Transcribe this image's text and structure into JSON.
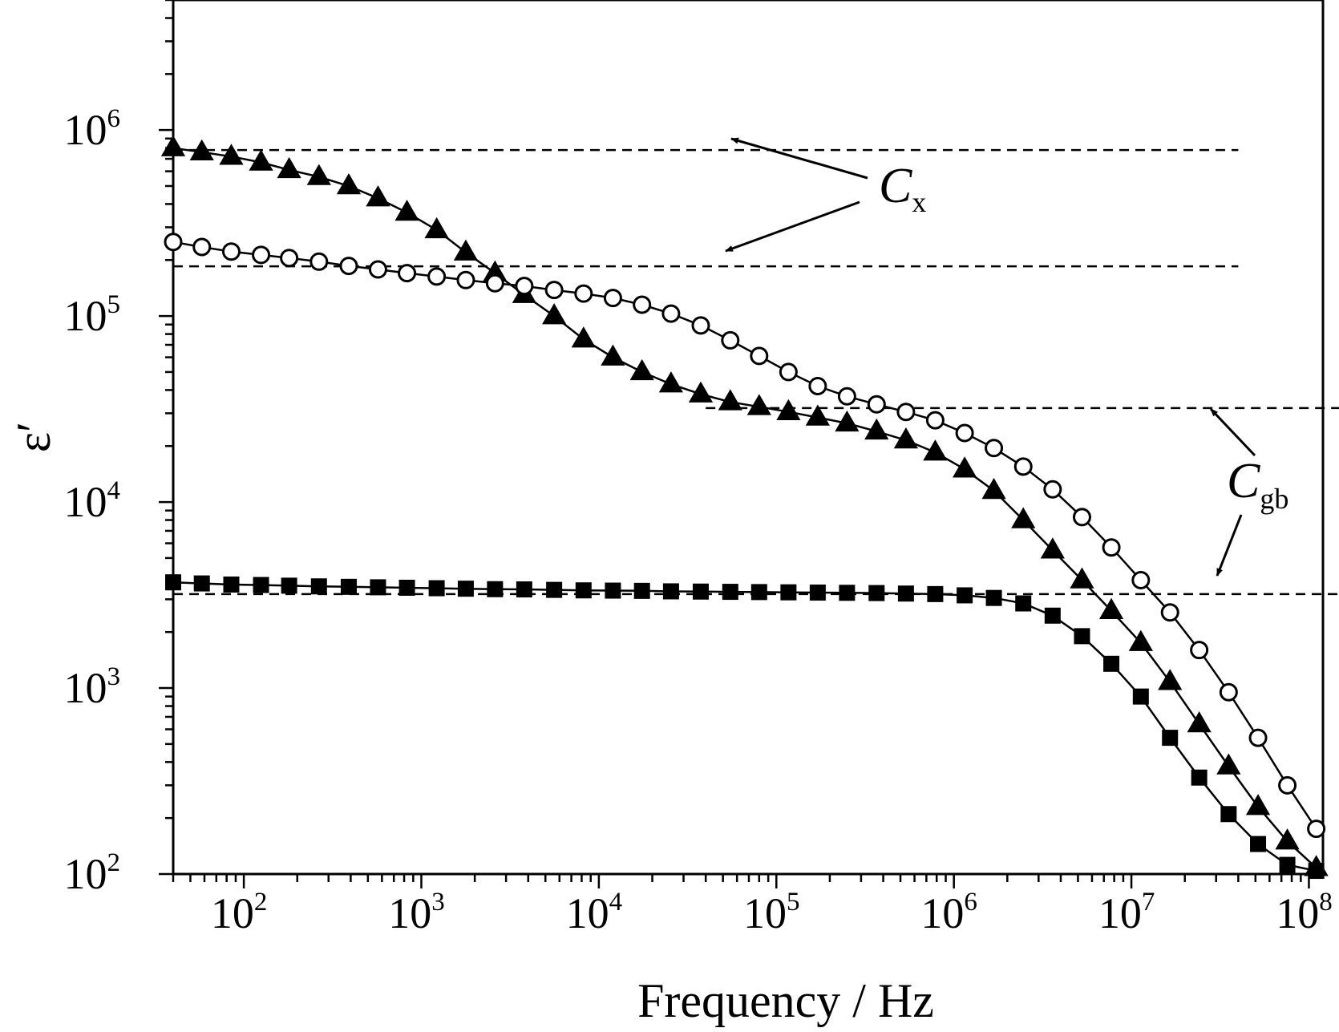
{
  "chart_data": {
    "type": "scatter",
    "title": "",
    "xlabel": "Frequency / Hz",
    "ylabel": "ε′",
    "x_scale": "log",
    "y_scale": "log",
    "xlim": [
      40,
      120000000
    ],
    "ylim": [
      100,
      5000000
    ],
    "grid": false,
    "x_ticks": [
      {
        "base": "10",
        "exp": "2",
        "value": 100
      },
      {
        "base": "10",
        "exp": "3",
        "value": 1000
      },
      {
        "base": "10",
        "exp": "4",
        "value": 10000
      },
      {
        "base": "10",
        "exp": "5",
        "value": 100000
      },
      {
        "base": "10",
        "exp": "6",
        "value": 1000000
      },
      {
        "base": "10",
        "exp": "7",
        "value": 10000000
      },
      {
        "base": "10",
        "exp": "8",
        "value": 100000000
      }
    ],
    "y_ticks": [
      {
        "base": "10",
        "exp": "2",
        "value": 100
      },
      {
        "base": "10",
        "exp": "3",
        "value": 1000
      },
      {
        "base": "10",
        "exp": "4",
        "value": 10000
      },
      {
        "base": "10",
        "exp": "5",
        "value": 100000
      },
      {
        "base": "10",
        "exp": "6",
        "value": 1000000
      }
    ],
    "series": [
      {
        "marker": "triangle-filled",
        "line": "solid",
        "points": [
          [
            40,
            800000
          ],
          [
            58,
            760000
          ],
          [
            85,
            720000
          ],
          [
            125,
            670000
          ],
          [
            180,
            610000
          ],
          [
            265,
            560000
          ],
          [
            390,
            500000
          ],
          [
            570,
            430000
          ],
          [
            830,
            360000
          ],
          [
            1220,
            290000
          ],
          [
            1780,
            220000
          ],
          [
            2600,
            170000
          ],
          [
            3800,
            130000
          ],
          [
            5600,
            100000
          ],
          [
            8200,
            75000
          ],
          [
            12000,
            60000
          ],
          [
            17500,
            50000
          ],
          [
            25500,
            43000
          ],
          [
            37500,
            38000
          ],
          [
            55000,
            34500
          ],
          [
            80000,
            32500
          ],
          [
            117000,
            30500
          ],
          [
            171000,
            28500
          ],
          [
            250000,
            26500
          ],
          [
            367000,
            24000
          ],
          [
            537000,
            21500
          ],
          [
            785000,
            18500
          ],
          [
            1150000,
            15000
          ],
          [
            1680000,
            11500
          ],
          [
            2460000,
            8000
          ],
          [
            3600000,
            5500
          ],
          [
            5270000,
            3800
          ],
          [
            7710000,
            2600
          ],
          [
            11300000,
            1750
          ],
          [
            16500000,
            1080
          ],
          [
            24100000,
            640
          ],
          [
            35300000,
            380
          ],
          [
            51700000,
            230
          ],
          [
            75600000,
            150
          ],
          [
            110000000,
            108
          ]
        ]
      },
      {
        "marker": "circle-open",
        "line": "solid",
        "points": [
          [
            40,
            250000
          ],
          [
            58,
            235000
          ],
          [
            85,
            222000
          ],
          [
            125,
            213000
          ],
          [
            180,
            205000
          ],
          [
            265,
            196000
          ],
          [
            390,
            186000
          ],
          [
            570,
            178000
          ],
          [
            830,
            170000
          ],
          [
            1220,
            163000
          ],
          [
            1780,
            156000
          ],
          [
            2600,
            150000
          ],
          [
            3800,
            145000
          ],
          [
            5600,
            138000
          ],
          [
            8200,
            132000
          ],
          [
            12000,
            125000
          ],
          [
            17500,
            115000
          ],
          [
            25500,
            103000
          ],
          [
            37500,
            89000
          ],
          [
            55000,
            74000
          ],
          [
            80000,
            61000
          ],
          [
            117000,
            50000
          ],
          [
            171000,
            42000
          ],
          [
            250000,
            37000
          ],
          [
            367000,
            33500
          ],
          [
            537000,
            30500
          ],
          [
            785000,
            27500
          ],
          [
            1150000,
            23500
          ],
          [
            1680000,
            19500
          ],
          [
            2460000,
            15500
          ],
          [
            3600000,
            11700
          ],
          [
            5270000,
            8300
          ],
          [
            7710000,
            5700
          ],
          [
            11300000,
            3800
          ],
          [
            16500000,
            2550
          ],
          [
            24100000,
            1600
          ],
          [
            35300000,
            950
          ],
          [
            51700000,
            540
          ],
          [
            75600000,
            300
          ],
          [
            110000000,
            175
          ]
        ]
      },
      {
        "marker": "square-filled",
        "line": "solid",
        "points": [
          [
            40,
            3700
          ],
          [
            58,
            3650
          ],
          [
            85,
            3600
          ],
          [
            125,
            3580
          ],
          [
            180,
            3550
          ],
          [
            265,
            3520
          ],
          [
            390,
            3500
          ],
          [
            570,
            3480
          ],
          [
            830,
            3460
          ],
          [
            1220,
            3440
          ],
          [
            1780,
            3420
          ],
          [
            2600,
            3400
          ],
          [
            3800,
            3390
          ],
          [
            5600,
            3370
          ],
          [
            8200,
            3350
          ],
          [
            12000,
            3340
          ],
          [
            17500,
            3330
          ],
          [
            25500,
            3310
          ],
          [
            37500,
            3300
          ],
          [
            55000,
            3290
          ],
          [
            80000,
            3280
          ],
          [
            117000,
            3270
          ],
          [
            171000,
            3260
          ],
          [
            250000,
            3250
          ],
          [
            367000,
            3240
          ],
          [
            537000,
            3220
          ],
          [
            785000,
            3200
          ],
          [
            1150000,
            3150
          ],
          [
            1680000,
            3050
          ],
          [
            2460000,
            2850
          ],
          [
            3600000,
            2450
          ],
          [
            5270000,
            1900
          ],
          [
            7710000,
            1350
          ],
          [
            11300000,
            900
          ],
          [
            16500000,
            540
          ],
          [
            24100000,
            330
          ],
          [
            35300000,
            210
          ],
          [
            51700000,
            145
          ],
          [
            75600000,
            112
          ],
          [
            110000000,
            104
          ]
        ]
      }
    ],
    "reference_lines": [
      {
        "name": "Cx",
        "y": 780000,
        "x_range": [
          40,
          40000000
        ]
      },
      {
        "name": "Cx",
        "y": 185000,
        "x_range": [
          40,
          40000000
        ]
      },
      {
        "name": "Cgb",
        "y": 32000,
        "x_range": [
          40000,
          300000000
        ]
      },
      {
        "name": "Cgb",
        "y": 3200,
        "x_range": [
          40,
          300000000
        ]
      }
    ],
    "annotations": [
      {
        "main": "C",
        "sub": "x",
        "points_to": "Cx dashed lines"
      },
      {
        "main": "C",
        "sub": "gb",
        "points_to": "Cgb dashed lines"
      }
    ]
  }
}
